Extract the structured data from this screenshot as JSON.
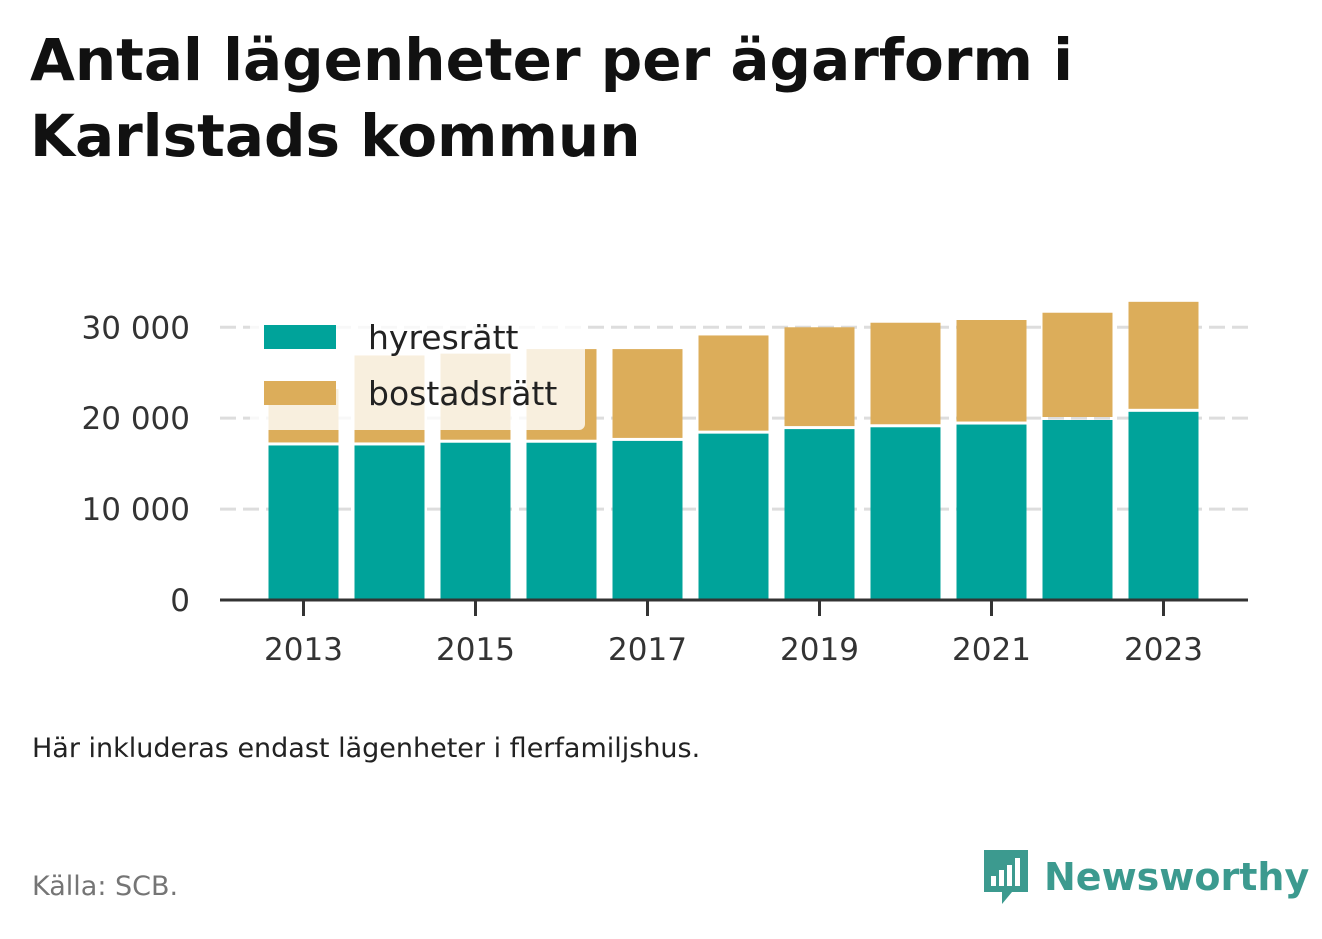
{
  "title": "Antal lägenheter per ägarform i Karlstads kommun",
  "note": "Här inkluderas endast lägenheter i flerfamiljshus.",
  "source": "Källa: SCB.",
  "brand": {
    "name": "Newsworthy",
    "icon": "bar-chart-speech-bubble-icon",
    "color": "#3c9a8f"
  },
  "chart_data": {
    "type": "bar",
    "stacked": true,
    "x": [
      2013,
      2014,
      2015,
      2016,
      2017,
      2018,
      2019,
      2020,
      2021,
      2022,
      2023
    ],
    "x_tick_labels": [
      "2013",
      "2015",
      "2017",
      "2019",
      "2021",
      "2023"
    ],
    "y_tick_labels": [
      "0",
      "10 000",
      "20 000",
      "30 000"
    ],
    "y_ticks": [
      0,
      10000,
      20000,
      30000
    ],
    "ylim": [
      0,
      33000
    ],
    "grid": true,
    "legend_placement": "top-left",
    "series": [
      {
        "name": "hyresrätt",
        "color": "#00a39a",
        "values": [
          17000,
          17000,
          17300,
          17300,
          17500,
          18300,
          18800,
          19000,
          19300,
          19800,
          20700
        ]
      },
      {
        "name": "bostadsrätt",
        "color": "#dcad5a",
        "values": [
          6200,
          9900,
          9800,
          10300,
          10100,
          10800,
          11200,
          11500,
          11500,
          11800,
          12100
        ]
      }
    ]
  }
}
